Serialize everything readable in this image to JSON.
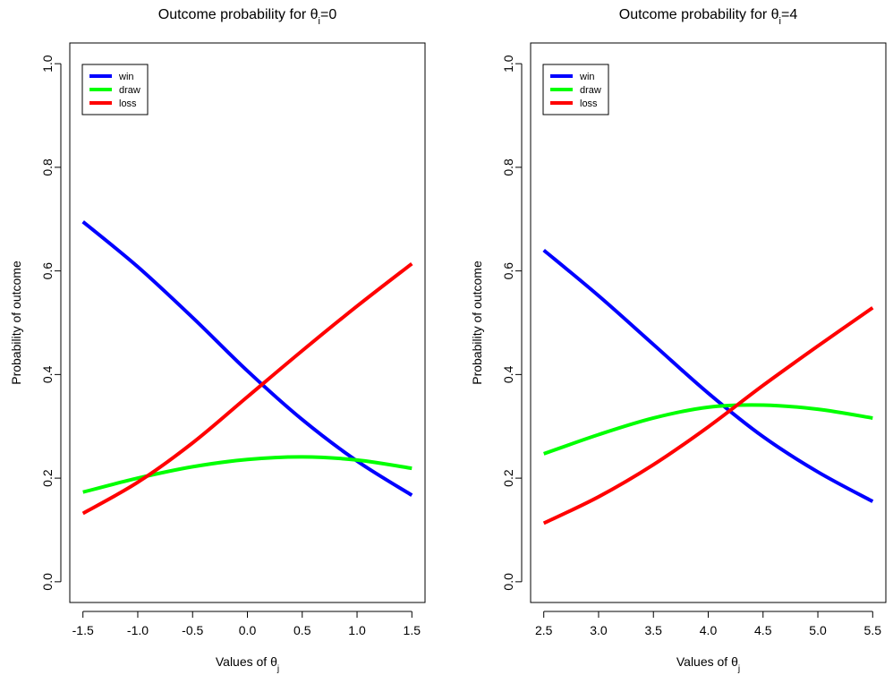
{
  "chart_data": [
    {
      "type": "line",
      "title": {
        "prefix": "Outcome probability for ",
        "symbol": "θ",
        "subscript": "i",
        "suffix": "=0"
      },
      "xlabel": {
        "prefix": "Values of ",
        "symbol": "θ",
        "subscript": "j"
      },
      "ylabel": "Probability of outcome",
      "xlim": [
        -1.5,
        1.5
      ],
      "ylim": [
        0,
        1
      ],
      "xticks": [
        -1.5,
        -1.0,
        -0.5,
        0.0,
        0.5,
        1.0,
        1.5
      ],
      "xtick_labels": [
        "-1.5",
        "-1.0",
        "-0.5",
        "0.0",
        "0.5",
        "1.0",
        "1.5"
      ],
      "yticks": [
        0.0,
        0.2,
        0.4,
        0.6,
        0.8,
        1.0
      ],
      "ytick_labels": [
        "0.0",
        "0.2",
        "0.4",
        "0.6",
        "0.8",
        "1.0"
      ],
      "grid": false,
      "legend_position": "top-left",
      "x": [
        -1.5,
        -1.0,
        -0.5,
        0.0,
        0.5,
        1.0,
        1.5
      ],
      "series": [
        {
          "name": "win",
          "color": "#0000ff",
          "values": [
            0.695,
            0.608,
            0.51,
            0.407,
            0.313,
            0.233,
            0.167
          ]
        },
        {
          "name": "draw",
          "color": "#00ff00",
          "values": [
            0.173,
            0.2,
            0.222,
            0.236,
            0.241,
            0.235,
            0.219
          ]
        },
        {
          "name": "loss",
          "color": "#ff0000",
          "values": [
            0.132,
            0.192,
            0.268,
            0.357,
            0.446,
            0.532,
            0.614
          ]
        }
      ]
    },
    {
      "type": "line",
      "title": {
        "prefix": "Outcome probability for ",
        "symbol": "θ",
        "subscript": "i",
        "suffix": "=4"
      },
      "xlabel": {
        "prefix": "Values of ",
        "symbol": "θ",
        "subscript": "j"
      },
      "ylabel": "Probability of outcome",
      "xlim": [
        2.5,
        5.5
      ],
      "ylim": [
        0,
        1
      ],
      "xticks": [
        2.5,
        3.0,
        3.5,
        4.0,
        4.5,
        5.0,
        5.5
      ],
      "xtick_labels": [
        "2.5",
        "3.0",
        "3.5",
        "4.0",
        "4.5",
        "5.0",
        "5.5"
      ],
      "yticks": [
        0.0,
        0.2,
        0.4,
        0.6,
        0.8,
        1.0
      ],
      "ytick_labels": [
        "0.0",
        "0.2",
        "0.4",
        "0.6",
        "0.8",
        "1.0"
      ],
      "grid": false,
      "legend_position": "top-left",
      "x": [
        2.5,
        3.0,
        3.5,
        4.0,
        4.5,
        5.0,
        5.5
      ],
      "series": [
        {
          "name": "win",
          "color": "#0000ff",
          "values": [
            0.64,
            0.552,
            0.458,
            0.364,
            0.28,
            0.212,
            0.155
          ]
        },
        {
          "name": "draw",
          "color": "#00ff00",
          "values": [
            0.247,
            0.284,
            0.316,
            0.337,
            0.341,
            0.333,
            0.316
          ]
        },
        {
          "name": "loss",
          "color": "#ff0000",
          "values": [
            0.113,
            0.164,
            0.226,
            0.299,
            0.379,
            0.455,
            0.529
          ]
        }
      ]
    }
  ]
}
